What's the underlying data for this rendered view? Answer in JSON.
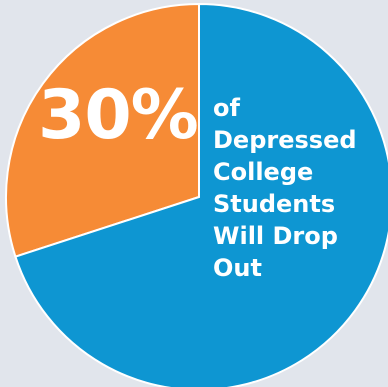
{
  "colors": {
    "background": "#e1e5ec",
    "highlight_slice": "#f68b36",
    "rest_slice": "#0e96d2",
    "slice_border": "#ffffff",
    "text": "#ffffff"
  },
  "chart_data": {
    "type": "pie",
    "slices": [
      {
        "label": "30%",
        "value": 30,
        "color": "#f68b36"
      },
      {
        "label": "",
        "value": 70,
        "color": "#0e96d2"
      }
    ],
    "start": "top",
    "direction": "counterclockwise",
    "annotations": {
      "percent": "30%",
      "caption_lines": [
        "of",
        "Depressed",
        "College",
        "Students",
        "Will Drop",
        "Out"
      ]
    }
  }
}
